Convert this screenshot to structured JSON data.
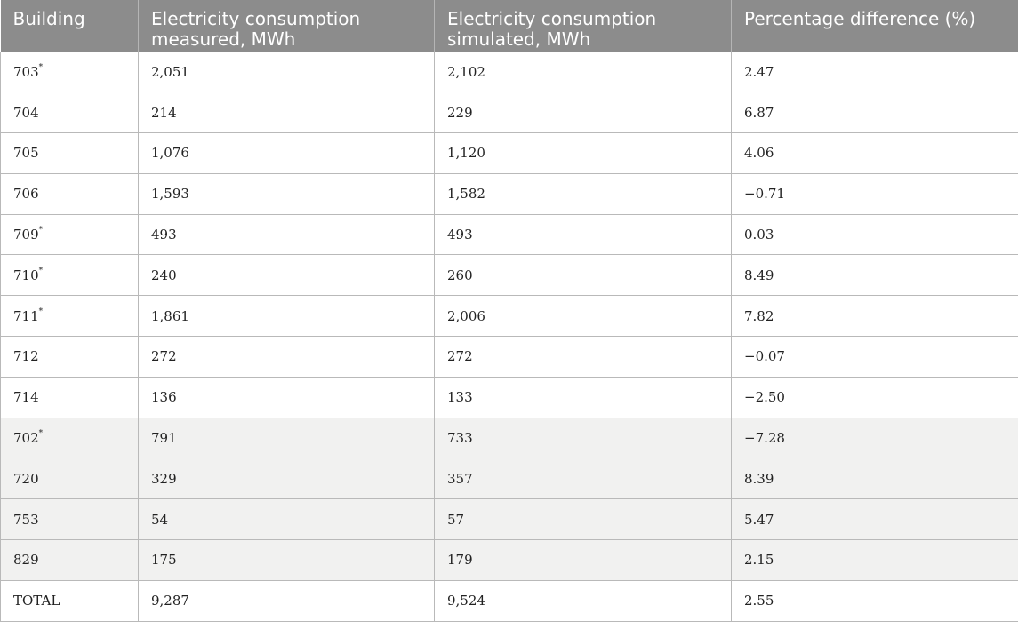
{
  "table": {
    "headers": [
      "Building",
      "Electricity consumption measured, MWh",
      "Electricity consumption simulated, MWh",
      "Percentage difference (%)"
    ],
    "rows": [
      {
        "building": "703",
        "mark": "*",
        "measured": "2,051",
        "simulated": "2,102",
        "diff": "2.47",
        "shaded": false
      },
      {
        "building": "704",
        "mark": "",
        "measured": "214",
        "simulated": "229",
        "diff": "6.87",
        "shaded": false
      },
      {
        "building": "705",
        "mark": "",
        "measured": "1,076",
        "simulated": "1,120",
        "diff": "4.06",
        "shaded": false
      },
      {
        "building": "706",
        "mark": "",
        "measured": "1,593",
        "simulated": "1,582",
        "diff": "−0.71",
        "shaded": false
      },
      {
        "building": "709",
        "mark": "*",
        "measured": "493",
        "simulated": "493",
        "diff": "0.03",
        "shaded": false
      },
      {
        "building": "710",
        "mark": "*",
        "measured": "240",
        "simulated": "260",
        "diff": "8.49",
        "shaded": false
      },
      {
        "building": "711",
        "mark": "*",
        "measured": "1,861",
        "simulated": "2,006",
        "diff": "7.82",
        "shaded": false
      },
      {
        "building": "712",
        "mark": "",
        "measured": "272",
        "simulated": "272",
        "diff": "−0.07",
        "shaded": false
      },
      {
        "building": "714",
        "mark": "",
        "measured": "136",
        "simulated": "133",
        "diff": "−2.50",
        "shaded": false
      },
      {
        "building": "702",
        "mark": "*",
        "measured": "791",
        "simulated": "733",
        "diff": "−7.28",
        "shaded": true
      },
      {
        "building": "720",
        "mark": "",
        "measured": "329",
        "simulated": "357",
        "diff": "8.39",
        "shaded": true
      },
      {
        "building": "753",
        "mark": "",
        "measured": "54",
        "simulated": "57",
        "diff": "5.47",
        "shaded": true
      },
      {
        "building": "829",
        "mark": "",
        "measured": "175",
        "simulated": "179",
        "diff": "2.15",
        "shaded": true
      },
      {
        "building": "TOTAL",
        "mark": "",
        "measured": "9,287",
        "simulated": "9,524",
        "diff": "2.55",
        "shaded": false
      }
    ]
  }
}
